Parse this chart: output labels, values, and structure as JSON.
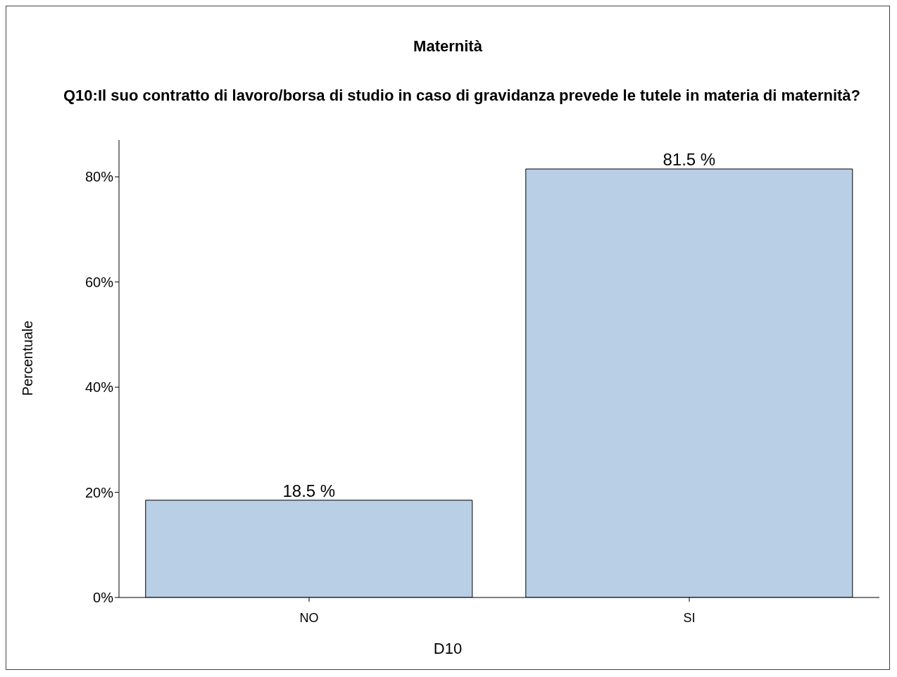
{
  "chart_data": {
    "type": "bar",
    "title": "Maternità",
    "subtitle": "Q10:Il  suo contratto di lavoro/borsa di studio in caso di gravidanza prevede le tutele in materia di maternità?",
    "xlabel": "D10",
    "ylabel": "Percentuale",
    "categories": [
      "NO",
      "SI"
    ],
    "values": [
      18.5,
      81.5
    ],
    "color": "#b8cfe6",
    "value_labels": [
      "18.5 %",
      "81.5 %"
    ],
    "ylim": [
      0,
      87
    ],
    "yticks": [
      {
        "value": 0,
        "label": "0%"
      },
      {
        "value": 20,
        "label": "20%"
      },
      {
        "value": 40,
        "label": "40%"
      },
      {
        "value": 60,
        "label": "60%"
      },
      {
        "value": 80,
        "label": "80%"
      }
    ],
    "grid": false
  }
}
